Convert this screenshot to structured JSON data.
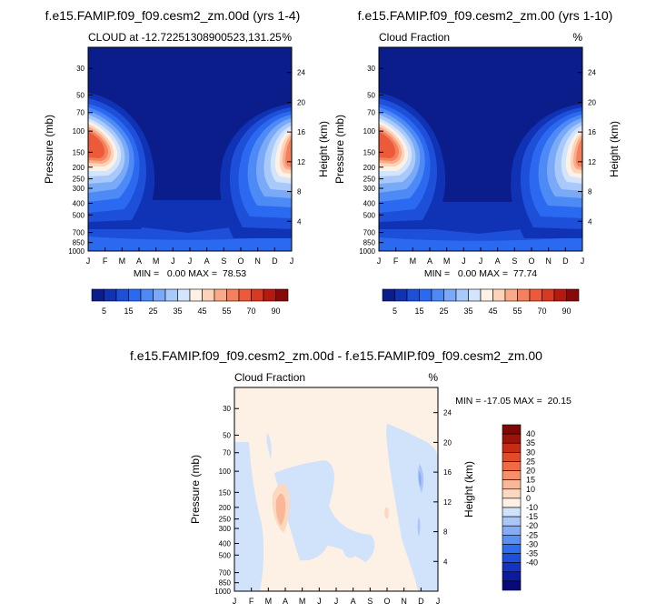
{
  "colors": {
    "abs_scale": [
      "#0a1d8a",
      "#1032b4",
      "#1e4fd8",
      "#2b6af0",
      "#4d8af5",
      "#7aaaf7",
      "#a9c9fa",
      "#d3e5fc",
      "#fdf0e4",
      "#fcd3b8",
      "#f9ab88",
      "#f4805d",
      "#ec5a39",
      "#d93922",
      "#b6190f",
      "#850a09"
    ],
    "diff_scale": [
      "#070a78",
      "#0d1aa0",
      "#1532c2",
      "#1e4fdb",
      "#2f6cee",
      "#5a8ff3",
      "#86acf5",
      "#adc6f8",
      "#d1e2fb",
      "#fdf0e4",
      "#fcd8c0",
      "#f9b797",
      "#f5906b",
      "#ef6a45",
      "#e04b2a",
      "#c42c16",
      "#9c1409",
      "#7d0806"
    ]
  },
  "chart_data": [
    {
      "type": "heatmap",
      "title": "f.e15.FAMIP.f09_f09.cesm2_zm.00d (yrs 1-4)",
      "subtitle_left": "CLOUD at -12.72251308900523,131.25",
      "subtitle_right": "%",
      "xlabel": "",
      "ylabel": "Pressure (mb)",
      "ylabel_right": "Height (km)",
      "x_ticks": [
        "J",
        "F",
        "M",
        "A",
        "M",
        "J",
        "J",
        "A",
        "S",
        "O",
        "N",
        "D",
        "J"
      ],
      "y_ticks": [
        "30",
        "50",
        "70",
        "100",
        "150",
        "200",
        "250",
        "300",
        "400",
        "500",
        "700",
        "850",
        "1000"
      ],
      "y_ticks_right": [
        "24",
        "20",
        "16",
        "12",
        "8",
        "4"
      ],
      "ylim": [
        1000,
        20
      ],
      "yscale": "log",
      "stats": "MIN =   0.00 MAX =  78.53",
      "colorbar_labels": [
        "5",
        "15",
        "25",
        "35",
        "45",
        "55",
        "70",
        "90"
      ],
      "levels": [
        5,
        10,
        15,
        20,
        25,
        30,
        35,
        40,
        45,
        50,
        55,
        60,
        70,
        80,
        90
      ],
      "min": 0.0,
      "max": 78.53
    },
    {
      "type": "heatmap",
      "title": "f.e15.FAMIP.f09_f09.cesm2_zm.00 (yrs 1-10)",
      "subtitle_left": "Cloud Fraction",
      "subtitle_right": "%",
      "xlabel": "",
      "ylabel": "Pressure (mb)",
      "ylabel_right": "Height (km)",
      "x_ticks": [
        "J",
        "F",
        "M",
        "A",
        "M",
        "J",
        "J",
        "A",
        "S",
        "O",
        "N",
        "D",
        "J"
      ],
      "y_ticks": [
        "30",
        "50",
        "70",
        "100",
        "150",
        "200",
        "250",
        "300",
        "400",
        "500",
        "700",
        "850",
        "1000"
      ],
      "y_ticks_right": [
        "24",
        "20",
        "16",
        "12",
        "8",
        "4"
      ],
      "ylim": [
        1000,
        20
      ],
      "yscale": "log",
      "stats": "MIN =   0.00 MAX =  77.74",
      "colorbar_labels": [
        "5",
        "15",
        "25",
        "35",
        "45",
        "55",
        "70",
        "90"
      ],
      "levels": [
        5,
        10,
        15,
        20,
        25,
        30,
        35,
        40,
        45,
        50,
        55,
        60,
        70,
        80,
        90
      ],
      "min": 0.0,
      "max": 77.74
    },
    {
      "type": "heatmap",
      "title": "f.e15.FAMIP.f09_f09.cesm2_zm.00d - f.e15.FAMIP.f09_f09.cesm2_zm.00",
      "subtitle_left": "Cloud Fraction",
      "subtitle_right": "%",
      "xlabel": "",
      "ylabel": "Pressure (mb)",
      "ylabel_right": "Height (km)",
      "x_ticks": [
        "J",
        "F",
        "M",
        "A",
        "M",
        "J",
        "J",
        "A",
        "S",
        "O",
        "N",
        "D",
        "J"
      ],
      "y_ticks": [
        "30",
        "50",
        "70",
        "100",
        "150",
        "200",
        "250",
        "300",
        "400",
        "500",
        "700",
        "850",
        "1000"
      ],
      "y_ticks_right": [
        "24",
        "20",
        "16",
        "12",
        "8",
        "4"
      ],
      "ylim": [
        1000,
        20
      ],
      "yscale": "log",
      "stats": "MIN = -17.05 MAX =  20.15",
      "colorbar_labels": [
        "40",
        "35",
        "30",
        "25",
        "20",
        "15",
        "10",
        "0",
        "-10",
        "-15",
        "-20",
        "-25",
        "-30",
        "-35",
        "-40"
      ],
      "levels": [
        -40,
        -35,
        -30,
        -25,
        -20,
        -15,
        -10,
        -5,
        -1,
        1,
        5,
        10,
        15,
        20,
        25,
        30,
        35,
        40
      ],
      "min": -17.05,
      "max": 20.15
    }
  ]
}
